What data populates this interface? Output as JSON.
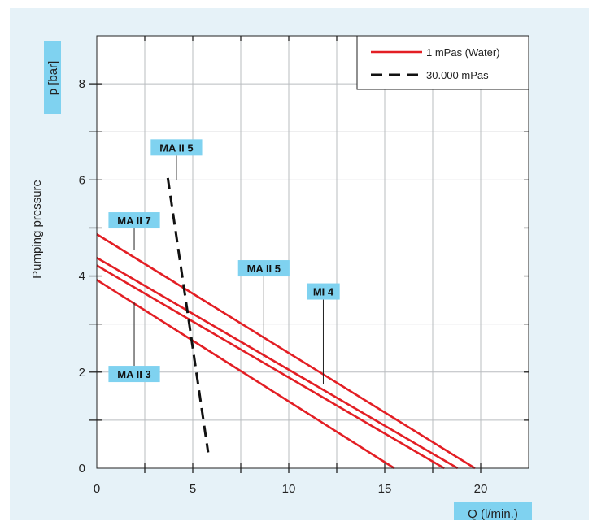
{
  "chart_data": {
    "type": "line",
    "ylabel": "Pumping pressure",
    "ylabel_unit": "p [bar]",
    "xlabel": "Q (l/min.)",
    "xlim": [
      0,
      22.5
    ],
    "ylim": [
      0,
      9
    ],
    "x_ticks": [
      0,
      5,
      10,
      15,
      20
    ],
    "y_ticks": [
      0,
      2,
      4,
      6,
      8
    ],
    "grid": true,
    "legend_position": "top-right",
    "legend": [
      {
        "label": "1 mPas (Water)",
        "style": "solid",
        "color": "#e31e24"
      },
      {
        "label": "30.000 mPas",
        "style": "dashed",
        "color": "#111111"
      }
    ],
    "series": [
      {
        "tag": "MA II 7",
        "style": "solid",
        "color": "#e31e24",
        "points": [
          [
            0,
            4.87
          ],
          [
            19.7,
            0
          ]
        ]
      },
      {
        "tag": "MA II 5",
        "style": "solid",
        "color": "#e31e24",
        "points": [
          [
            0,
            4.38
          ],
          [
            18.8,
            0
          ]
        ]
      },
      {
        "tag": "MI 4",
        "style": "solid",
        "color": "#e31e24",
        "points": [
          [
            0,
            4.22
          ],
          [
            18.1,
            0
          ]
        ]
      },
      {
        "tag": "MA II 3",
        "style": "solid",
        "color": "#e31e24",
        "points": [
          [
            0,
            3.92
          ],
          [
            15.5,
            0
          ]
        ]
      },
      {
        "tag": "MA II 5",
        "style": "dashed",
        "color": "#111111",
        "points": [
          [
            3.7,
            6.04
          ],
          [
            5.8,
            0.33
          ]
        ]
      }
    ],
    "annotations": [
      {
        "text": "MA II 5",
        "leader_x": 4.15,
        "leader_y": 6.0
      },
      {
        "text": "MA II 7",
        "leader_x": 1.95,
        "leader_y": 4.55
      },
      {
        "text": "MA II 5",
        "leader_x": 8.7,
        "leader_y": 2.3
      },
      {
        "text": "MI 4",
        "leader_x": 11.8,
        "leader_y": 1.75
      },
      {
        "text": "MA II 3",
        "leader_x": 1.95,
        "leader_y": 3.45
      }
    ]
  },
  "colors": {
    "background": "#e6f2f8",
    "plot_area": "#ffffff",
    "label_highlight": "#7fd2f0",
    "grid": "#b9bcbf",
    "axis": "#222222"
  }
}
